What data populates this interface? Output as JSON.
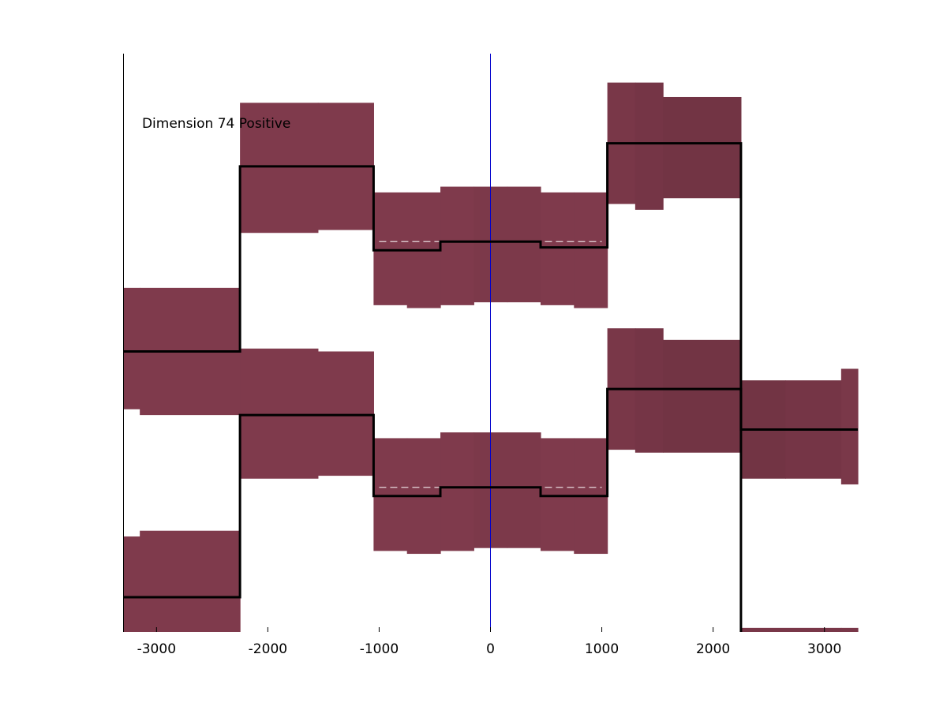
{
  "chart_data": {
    "type": "line",
    "title": "",
    "xlabel": "",
    "ylabel": "",
    "xlim": [
      -3300,
      3300
    ],
    "ylim": [
      0,
      100
    ],
    "grid": false,
    "x_ticks": [
      -3000,
      -2000,
      -1000,
      0,
      1000,
      2000,
      3000
    ],
    "x_tick_labels": [
      "-3000",
      "-2000",
      "-1000",
      "0",
      "1000",
      "2000",
      "3000"
    ],
    "annotations": [
      {
        "text": "Dimension 74 Positive",
        "x": -3130,
        "y": 87.2
      }
    ],
    "vline": {
      "x": 0,
      "color": "#0000cc"
    },
    "colors": {
      "band": "#7f3a4c",
      "line": "#000000",
      "dashed": "#e6d8dc",
      "axis": "#000000"
    },
    "bands": [
      {
        "x": [
          -3300,
          -3150,
          -2250
        ],
        "lower": [
          38.5,
          37.5,
          37.5
        ],
        "upper": [
          59.5,
          59.5,
          59.5
        ],
        "shade": [
          0.0,
          0.0,
          0.0
        ]
      },
      {
        "x": [
          -2250,
          -1550,
          -1050
        ],
        "lower": [
          69.0,
          69.5,
          69.5
        ],
        "upper": [
          91.5,
          91.5,
          90.0
        ],
        "shade": [
          0.0,
          0.0,
          0.0
        ]
      },
      {
        "x": [
          -1050,
          -750,
          -450,
          -150,
          150,
          450,
          750,
          1050
        ],
        "lower": [
          56.5,
          56.0,
          56.5,
          57.0,
          57.0,
          56.5,
          56.0,
          55.5
        ],
        "upper": [
          76.0,
          76.0,
          77.0,
          77.0,
          77.0,
          76.0,
          76.0,
          75.5
        ],
        "shade": [
          0.0,
          0.0,
          0.0,
          0.02,
          0.02,
          0.0,
          0.0,
          0.0
        ]
      },
      {
        "x": [
          1050,
          1300,
          1550,
          2250
        ],
        "lower": [
          74.0,
          73.0,
          75.0,
          75.0
        ],
        "upper": [
          95.0,
          95.0,
          92.5,
          92.5
        ],
        "shade": [
          0.05,
          0.08,
          0.1,
          0.1
        ]
      },
      {
        "x": [
          -3300,
          -3150,
          -2250
        ],
        "lower": [
          0.0,
          0.0,
          0.0
        ],
        "upper": [
          16.5,
          17.5,
          17.5
        ],
        "shade": [
          0.0,
          0.0,
          0.0
        ]
      },
      {
        "x": [
          -2250,
          -1550,
          -1050
        ],
        "lower": [
          26.5,
          27.0,
          27.0
        ],
        "upper": [
          49.0,
          48.5,
          47.5
        ],
        "shade": [
          0.0,
          0.0,
          0.0
        ]
      },
      {
        "x": [
          -1050,
          -750,
          -450,
          -150,
          150,
          450,
          750,
          1050
        ],
        "lower": [
          14.0,
          13.5,
          14.0,
          14.5,
          14.5,
          14.0,
          13.5,
          13.0
        ],
        "upper": [
          33.5,
          33.5,
          34.5,
          34.5,
          34.5,
          33.5,
          33.5,
          33.0
        ],
        "shade": [
          0.0,
          0.0,
          0.0,
          0.02,
          0.02,
          0.0,
          0.0,
          0.0
        ]
      },
      {
        "x": [
          1050,
          1300,
          1550,
          2250
        ],
        "lower": [
          31.5,
          31.0,
          31.0,
          31.0
        ],
        "upper": [
          52.5,
          52.5,
          50.5,
          50.5
        ],
        "shade": [
          0.05,
          0.08,
          0.1,
          0.1
        ]
      },
      {
        "x": [
          2250,
          2650,
          3150,
          3300
        ],
        "lower": [
          26.5,
          26.5,
          25.5,
          25.5
        ],
        "upper": [
          43.5,
          43.5,
          45.5,
          45.5
        ],
        "shade": [
          0.1,
          0.08,
          0.04,
          0.04
        ]
      },
      {
        "x": [
          2250,
          3150,
          3300
        ],
        "lower": [
          0.0,
          0.0,
          0.0
        ],
        "upper": [
          0.7,
          0.7,
          2.5
        ],
        "shade": [
          0.05,
          0.05,
          0.05
        ]
      }
    ],
    "series": [
      {
        "x": [
          -3300,
          -2250,
          -2250,
          -1050,
          -1050,
          -450,
          -450,
          450,
          450,
          1050,
          1050,
          2250,
          2250
        ],
        "y": [
          48.5,
          48.5,
          80.5,
          80.5,
          66.0,
          66.0,
          67.5,
          67.5,
          66.5,
          66.5,
          84.5,
          84.5,
          0.0
        ]
      },
      {
        "x": [
          -3300,
          -2250,
          -2250,
          -1050,
          -1050,
          -450,
          -450,
          450,
          450,
          1050,
          1050,
          2250,
          2250,
          3300
        ],
        "y": [
          6.0,
          6.0,
          37.5,
          37.5,
          23.5,
          23.5,
          25.0,
          25.0,
          23.5,
          23.5,
          42.0,
          42.0,
          35.0,
          35.0
        ]
      }
    ],
    "dashed_segments": [
      {
        "x": [
          -1000,
          1000
        ],
        "y": 67.5
      },
      {
        "x": [
          -1000,
          1000
        ],
        "y": 25.0
      }
    ]
  }
}
